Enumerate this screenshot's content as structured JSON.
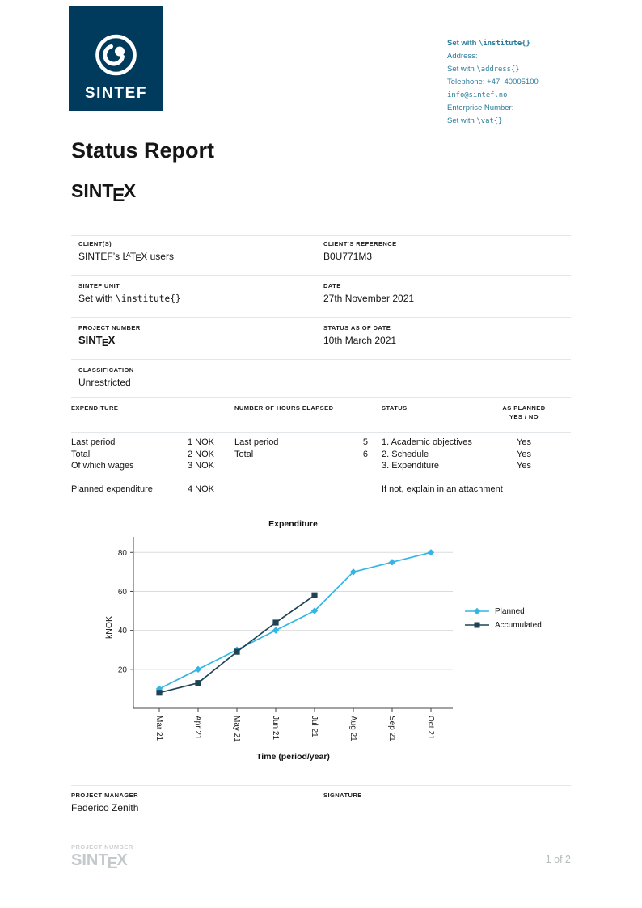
{
  "colors": {
    "brand_navy": "#003a5d",
    "contact_teal": "#2b7c9b",
    "planned_blue": "#33b6e3",
    "accumulated_navy": "#1d4355",
    "divider_grey": "#e4e7e9",
    "footer_grey": "#c4c9cc"
  },
  "logo": {
    "brand": "SINTEF"
  },
  "contact": {
    "institute": {
      "prefix": "Set with ",
      "command": "\\institute{}"
    },
    "address_label": "Address:",
    "address": {
      "prefix": "Set with ",
      "command": "\\address{}"
    },
    "telephone": "Telephone: +47  40005100",
    "email": "info@sintef.no",
    "enterprise_label": "Enterprise Number:",
    "vat": {
      "prefix": "Set with ",
      "command": "\\vat{}"
    }
  },
  "header": {
    "title": "Status Report",
    "project_logo": {
      "pre": "SINT",
      "e": "E",
      "post": "X"
    }
  },
  "info": {
    "clients": {
      "label": "CLIENT(S)",
      "value_pre": "SINTEF’s ",
      "latex": {
        "L": "L",
        "A": "A",
        "T": "T",
        "E": "E",
        "X": "X"
      },
      "value_post": " users"
    },
    "client_ref": {
      "label": "CLIENT’S REFERENCE",
      "value": "B0U771M3"
    },
    "unit": {
      "label": "SINTEF UNIT",
      "value": {
        "prefix": "Set with ",
        "command": "\\institute{}"
      }
    },
    "date": {
      "label": "DATE",
      "value": "27th November 2021"
    },
    "project_number": {
      "label": "PROJECT NUMBER",
      "value": {
        "pre": "SINT",
        "e": "E",
        "post": "X"
      }
    },
    "status_date": {
      "label": "STATUS AS OF DATE",
      "value": "10th March 2021"
    },
    "classification": {
      "label": "CLASSIFICATION",
      "value": "Unrestricted"
    }
  },
  "expenditure_table": {
    "headers": {
      "expenditure": "EXPENDITURE",
      "hours": "NUMBER OF HOURS ELAPSED",
      "status": "STATUS",
      "as_planned": "AS PLANNED",
      "yes_no": "YES / NO"
    },
    "expenditure_rows": [
      {
        "label": "Last period",
        "value": "1 NOK"
      },
      {
        "label": "Total",
        "value": "2 NOK"
      },
      {
        "label": "Of which wages",
        "value": "3 NOK"
      },
      {
        "label": "Planned expenditure",
        "value": "4 NOK"
      }
    ],
    "hours_rows": [
      {
        "label": "Last period",
        "value": "5"
      },
      {
        "label": "Total",
        "value": "6"
      }
    ],
    "status_rows": [
      {
        "label": "1. Academic objectives",
        "value": "Yes"
      },
      {
        "label": "2. Schedule",
        "value": "Yes"
      },
      {
        "label": "3. Expenditure",
        "value": "Yes"
      }
    ],
    "status_note": "If not, explain in an attachment"
  },
  "chart_data": {
    "type": "line",
    "title": "Expenditure",
    "xlabel": "Time (period/year)",
    "ylabel": "kNOK",
    "x": [
      "Mar 21",
      "Apr 21",
      "May 21",
      "Jun 21",
      "Jul 21",
      "Aug 21",
      "Sep 21",
      "Oct 21"
    ],
    "yticks": [
      20,
      40,
      60,
      80
    ],
    "ylim": [
      0,
      88
    ],
    "grid": "horizontal",
    "legend_position": "right",
    "series": [
      {
        "name": "Planned",
        "color": "#33b6e3",
        "marker": "diamond",
        "values": [
          10,
          20,
          30,
          40,
          50,
          70,
          75,
          80
        ]
      },
      {
        "name": "Accumulated",
        "color": "#1d4355",
        "marker": "square",
        "values": [
          8,
          13,
          29,
          44,
          58
        ]
      }
    ]
  },
  "signoff": {
    "manager_label": "PROJECT MANAGER",
    "manager_name": "Federico Zenith",
    "signature_label": "SIGNATURE"
  },
  "footer": {
    "project_number_label": "PROJECT NUMBER",
    "project_logo": {
      "pre": "SINT",
      "e": "E",
      "post": "X"
    },
    "page_indicator": "1 of 2"
  }
}
